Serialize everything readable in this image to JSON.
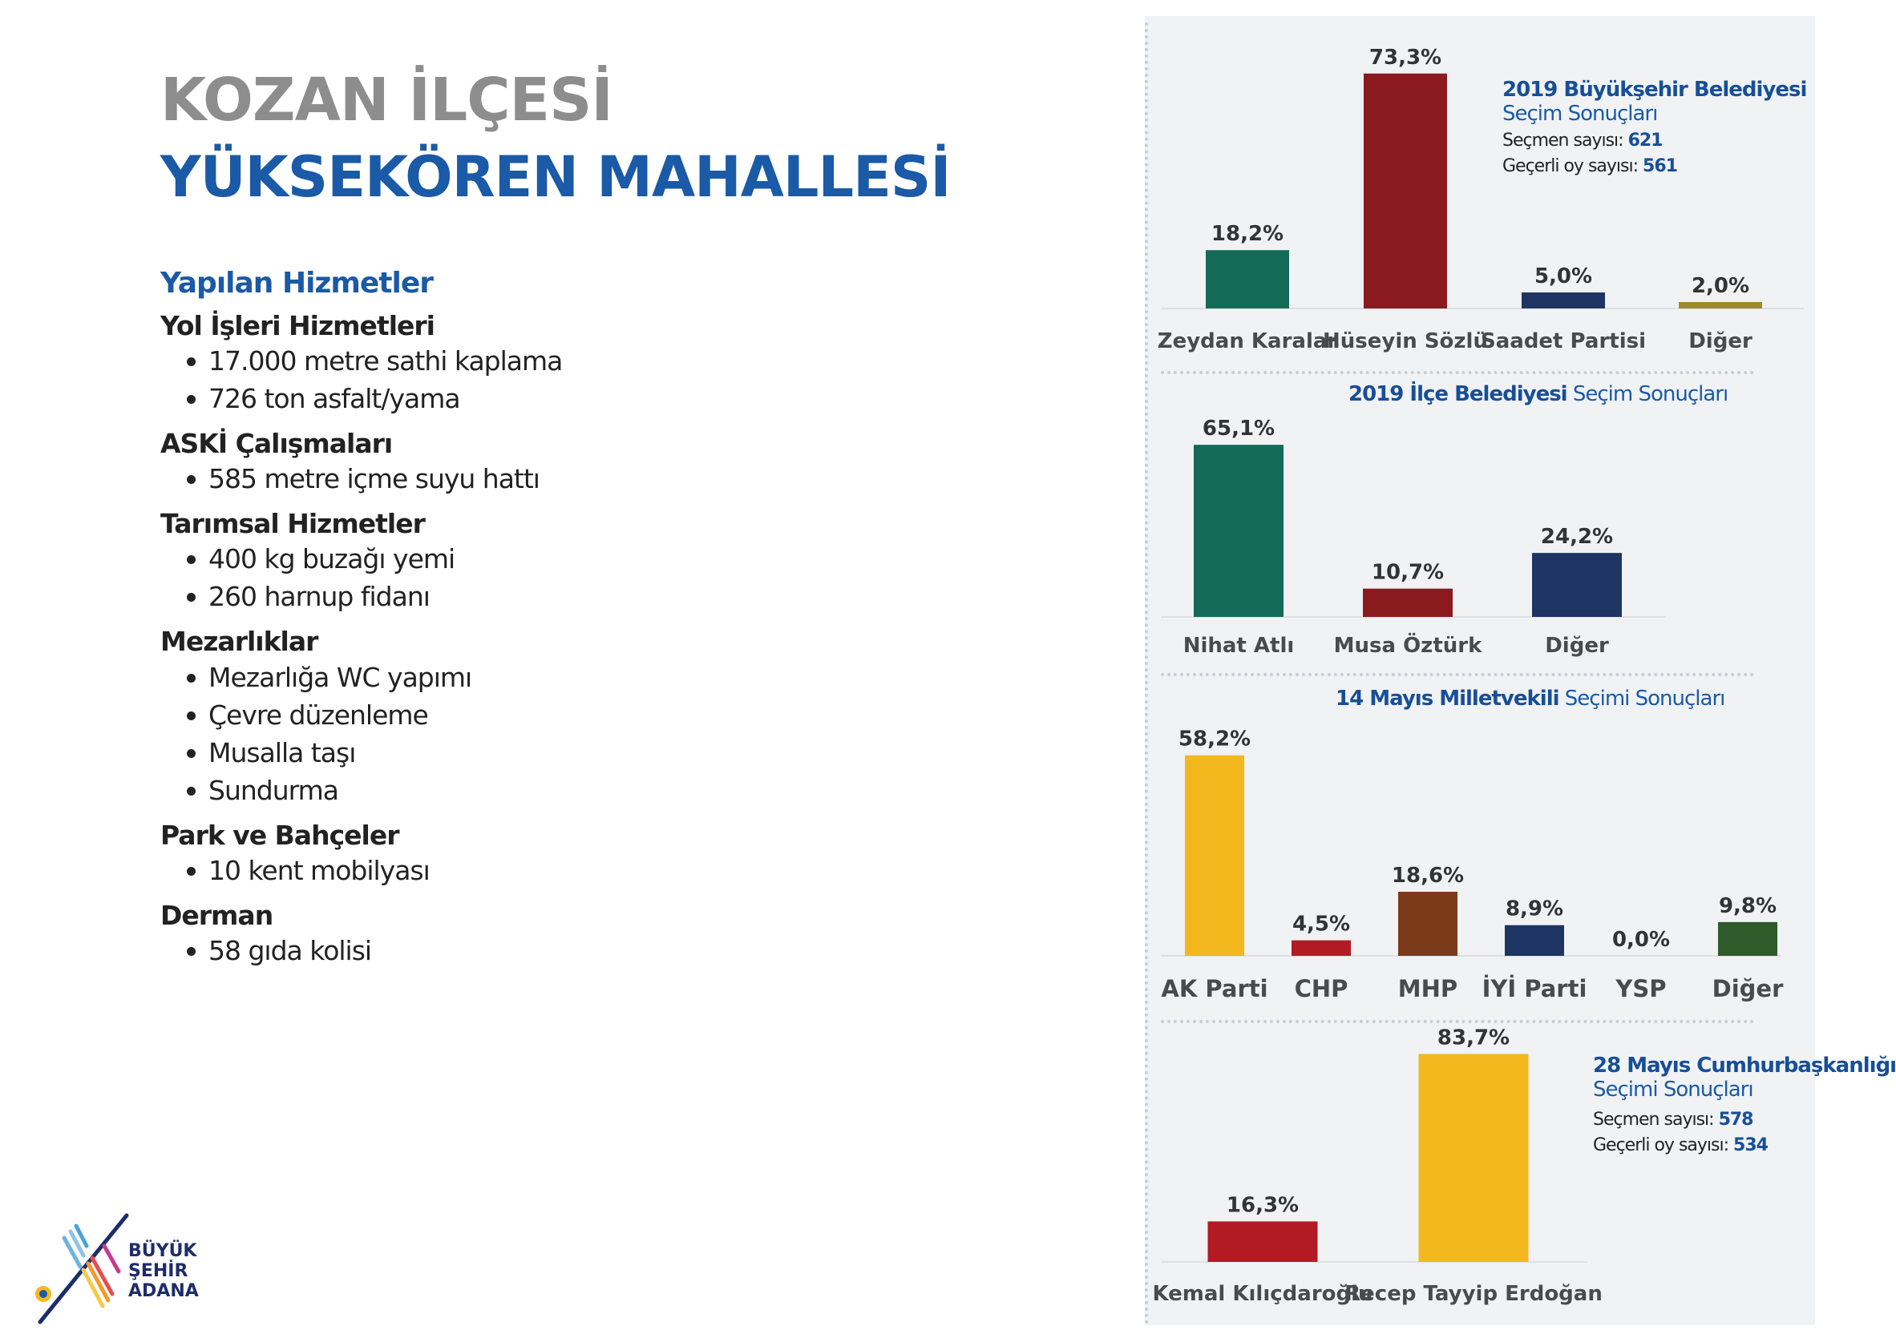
{
  "title": {
    "line1": "KOZAN İLÇESİ",
    "line2": "YÜKSEKÖREN MAHALLESİ"
  },
  "services": {
    "heading": "Yapılan Hizmetler",
    "categories": [
      {
        "title": "Yol İşleri Hizmetleri",
        "items": [
          "17.000 metre sathi kaplama",
          "726 ton asfalt/yama"
        ]
      },
      {
        "title": "ASKİ Çalışmaları",
        "items": [
          "585 metre içme suyu hattı"
        ]
      },
      {
        "title": "Tarımsal Hizmetler",
        "items": [
          "400 kg buzağı yemi",
          "260 harnup fidanı"
        ]
      },
      {
        "title": "Mezarlıklar",
        "items": [
          "Mezarlığa WC yapımı",
          "Çevre düzenleme",
          "Musalla taşı",
          "Sundurma"
        ]
      },
      {
        "title": "Park ve Bahçeler",
        "items": [
          "10 kent mobilyası"
        ]
      },
      {
        "title": "Derman",
        "items": [
          "58 gıda kolisi"
        ]
      }
    ]
  },
  "logo": {
    "line1": "BÜYÜK",
    "line2": "ŞEHİR",
    "line3": "ADANA"
  },
  "chart_data": [
    {
      "type": "bar",
      "title_bold": "2019 Büyükşehir Belediyesi",
      "title_rest": "Seçim Sonuçları",
      "voters_label": "Seçmen sayısı:",
      "voters": "621",
      "valid_label": "Geçerli oy sayısı:",
      "valid": "561",
      "categories": [
        "Zeydan Karalar",
        "Hüseyin Sözlü",
        "Saadet Partisi",
        "Diğer"
      ],
      "values": [
        18.2,
        73.3,
        5.0,
        2.0
      ],
      "value_labels": [
        "18,2%",
        "73,3%",
        "5,0%",
        "2,0%"
      ],
      "colors": [
        "#136b57",
        "#8b1a1e",
        "#1e3563",
        "#a08a2a"
      ]
    },
    {
      "type": "bar",
      "title_bold": "2019 İlçe Belediyesi",
      "title_rest": "Seçim Sonuçları",
      "categories": [
        "Nihat Atlı",
        "Musa Öztürk",
        "Diğer"
      ],
      "values": [
        65.1,
        10.7,
        24.2
      ],
      "value_labels": [
        "65,1%",
        "10,7%",
        "24,2%"
      ],
      "colors": [
        "#136b57",
        "#8b1a1e",
        "#1e3563"
      ]
    },
    {
      "type": "bar",
      "title_bold": "14 Mayıs Milletvekili",
      "title_rest": "Seçimi Sonuçları",
      "categories": [
        "AK Parti",
        "CHP",
        "MHP",
        "İYİ Parti",
        "YSP",
        "Diğer"
      ],
      "values": [
        58.2,
        4.5,
        18.6,
        8.9,
        0.0,
        9.8
      ],
      "value_labels": [
        "58,2%",
        "4,5%",
        "18,6%",
        "8,9%",
        "0,0%",
        "9,8%"
      ],
      "colors": [
        "#f2b81e",
        "#b31b24",
        "#7b3a1a",
        "#1e3563",
        "#7a4b9a",
        "#2f5a2a"
      ]
    },
    {
      "type": "bar",
      "title_bold": "28 Mayıs Cumhurbaşkanlığı",
      "title_rest": "Seçimi Sonuçları",
      "voters_label": "Seçmen sayısı:",
      "voters": "578",
      "valid_label": "Geçerli oy sayısı:",
      "valid": "534",
      "categories": [
        "Kemal Kılıçdaroğlu",
        "Recep Tayyip Erdoğan"
      ],
      "values": [
        16.3,
        83.7
      ],
      "value_labels": [
        "16,3%",
        "83,7%"
      ],
      "colors": [
        "#b31b24",
        "#f2b81e"
      ]
    }
  ]
}
